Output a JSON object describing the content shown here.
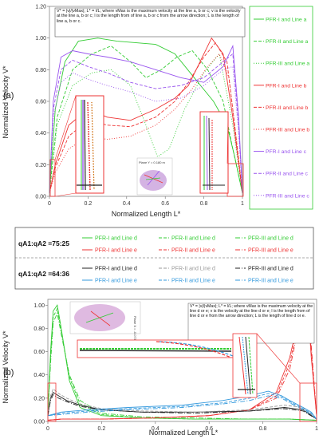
{
  "colors": {
    "green": "#33cc33",
    "red": "#ee3333",
    "purple": "#9955ee",
    "black": "#222222",
    "blue": "#3399dd",
    "grey": "#999999"
  },
  "chart_data": [
    {
      "type": "line",
      "panel_label": "(a)",
      "xlabel": "Normalized Length L*",
      "ylabel": "Normalized Velocity V*",
      "xlim": [
        0,
        1
      ],
      "ylim": [
        0,
        1.2
      ],
      "xticks": [
        "0",
        "0.2",
        "0.4",
        "0.6",
        "0.8",
        "1"
      ],
      "yticks": [
        "0.00",
        "0.20",
        "0.40",
        "0.60",
        "0.80",
        "1.00",
        "1.20"
      ],
      "grid": false,
      "legend_position": "right",
      "annotation": "V* = |v|/|vMax|;  L* = l/L;  where vMax is the maximum velocity at the line a, b or c; v is the velocity at the line a, b or c; l is the length from of line a, b or c from the arrow direction; L is the length of line a, b or c.",
      "inset_label": "Plane Y = 0.180 m",
      "series": [
        {
          "name": "PFR-I and Line a",
          "color": "#33cc33",
          "dash": "solid",
          "x": [
            0,
            0.03,
            0.08,
            0.15,
            0.25,
            0.35,
            0.45,
            0.55,
            0.65,
            0.75,
            0.85,
            0.92,
            0.96,
            1.0
          ],
          "y": [
            0.02,
            0.55,
            0.85,
            0.98,
            1.0,
            0.98,
            0.97,
            0.96,
            0.9,
            0.75,
            0.6,
            0.45,
            0.25,
            0.02
          ]
        },
        {
          "name": "PFR-II and Line a",
          "color": "#33cc33",
          "dash": "4,2",
          "x": [
            0,
            0.04,
            0.12,
            0.22,
            0.32,
            0.42,
            0.5,
            0.58,
            0.66,
            0.74,
            0.82,
            0.9,
            0.95,
            1.0
          ],
          "y": [
            0.02,
            0.5,
            0.8,
            0.9,
            0.95,
            0.85,
            0.75,
            0.8,
            0.88,
            0.92,
            0.8,
            0.6,
            0.3,
            0.02
          ]
        },
        {
          "name": "PFR-III and Line a",
          "color": "#33cc33",
          "dash": "1,2",
          "x": [
            0,
            0.04,
            0.12,
            0.22,
            0.32,
            0.42,
            0.5,
            0.56,
            0.62,
            0.7,
            0.8,
            0.88,
            0.95,
            1.0
          ],
          "y": [
            0.02,
            0.45,
            0.7,
            0.78,
            0.8,
            0.7,
            0.45,
            0.25,
            0.3,
            0.55,
            0.78,
            0.9,
            0.45,
            0.02
          ]
        },
        {
          "name": "PFR-I and Line b",
          "color": "#ee3333",
          "dash": "solid",
          "x": [
            0,
            0.03,
            0.1,
            0.2,
            0.3,
            0.42,
            0.55,
            0.65,
            0.72,
            0.78,
            0.84,
            0.9,
            0.95,
            1.0
          ],
          "y": [
            0.02,
            0.2,
            0.45,
            0.55,
            0.5,
            0.48,
            0.55,
            0.62,
            0.7,
            0.85,
            1.0,
            0.9,
            0.5,
            0.02
          ]
        },
        {
          "name": "PFR-II and Line b",
          "color": "#ee3333",
          "dash": "4,2",
          "x": [
            0,
            0.03,
            0.1,
            0.2,
            0.3,
            0.42,
            0.55,
            0.65,
            0.72,
            0.8,
            0.86,
            0.92,
            0.96,
            1.0
          ],
          "y": [
            0.02,
            0.18,
            0.38,
            0.48,
            0.45,
            0.44,
            0.5,
            0.6,
            0.72,
            0.88,
            0.97,
            0.85,
            0.45,
            0.02
          ]
        },
        {
          "name": "PFR-III and Line b",
          "color": "#ee3333",
          "dash": "1,2",
          "x": [
            0,
            0.03,
            0.1,
            0.2,
            0.3,
            0.42,
            0.55,
            0.65,
            0.74,
            0.82,
            0.88,
            0.93,
            0.97,
            1.0
          ],
          "y": [
            0.02,
            0.15,
            0.3,
            0.38,
            0.36,
            0.38,
            0.45,
            0.55,
            0.68,
            0.82,
            0.9,
            0.75,
            0.35,
            0.02
          ]
        },
        {
          "name": "PFR-I and Line c",
          "color": "#9955ee",
          "dash": "solid",
          "x": [
            0,
            0.02,
            0.06,
            0.12,
            0.2,
            0.3,
            0.42,
            0.55,
            0.68,
            0.8,
            0.9,
            0.95,
            0.98,
            1.0
          ],
          "y": [
            0.02,
            0.6,
            0.88,
            0.92,
            0.9,
            0.88,
            0.85,
            0.8,
            0.75,
            0.72,
            0.82,
            0.95,
            0.5,
            0.02
          ]
        },
        {
          "name": "PFR-II and Line c",
          "color": "#9955ee",
          "dash": "4,2",
          "x": [
            0,
            0.02,
            0.06,
            0.12,
            0.2,
            0.3,
            0.42,
            0.55,
            0.68,
            0.8,
            0.9,
            0.95,
            0.98,
            1.0
          ],
          "y": [
            0.02,
            0.55,
            0.8,
            0.86,
            0.82,
            0.78,
            0.72,
            0.68,
            0.7,
            0.75,
            0.85,
            0.9,
            0.45,
            0.02
          ]
        },
        {
          "name": "PFR-III and Line c",
          "color": "#9955ee",
          "dash": "1,2",
          "x": [
            0,
            0.02,
            0.06,
            0.12,
            0.2,
            0.3,
            0.42,
            0.55,
            0.68,
            0.8,
            0.9,
            0.95,
            0.98,
            1.0
          ],
          "y": [
            0.02,
            0.5,
            0.72,
            0.78,
            0.74,
            0.7,
            0.66,
            0.6,
            0.62,
            0.7,
            0.8,
            0.82,
            0.4,
            0.02
          ]
        }
      ]
    },
    {
      "type": "line",
      "panel_label": "(b)",
      "xlabel": "Normalized Length L*",
      "ylabel": "Normalized Velocity V*",
      "xlim": [
        0,
        1
      ],
      "ylim": [
        0,
        1.05
      ],
      "xticks": [
        "0",
        "0.2",
        "0.4",
        "0.6",
        "0.8",
        "1"
      ],
      "yticks": [
        "0.00",
        "0.20",
        "0.40",
        "0.60",
        "0.80",
        "1.00"
      ],
      "grid": false,
      "legend_position": "top",
      "annotation": "V* = |v|/|vMax|; L* = l/L; where vMax is the maximum velocity at the line d or e; v is the velocity at the line d or e; l is the length from of line d or e from the arrow direction; L is the length of line d or e.",
      "inset_label": "Plane X = -0.0733 m",
      "legend_groups": [
        {
          "label": "qA1:qA2 =75:25",
          "lines": [
            "d",
            "e"
          ]
        },
        {
          "label": "qA1:qA2 =64:36",
          "lines": [
            "d",
            "e"
          ]
        }
      ],
      "series": [
        {
          "name": "PFR-I and Line d",
          "group": "qA1:qA2 =75:25",
          "color": "#33cc33",
          "dash": "solid",
          "x": [
            0,
            0.01,
            0.02,
            0.035,
            0.05,
            0.08,
            0.12,
            0.2,
            0.35,
            0.55,
            0.75,
            0.9,
            1.0
          ],
          "y": [
            0.05,
            0.6,
            0.95,
            1.0,
            0.8,
            0.35,
            0.12,
            0.05,
            0.03,
            0.02,
            0.02,
            0.02,
            0.01
          ]
        },
        {
          "name": "PFR-II and Line d",
          "group": "qA1:qA2 =75:25",
          "color": "#33cc33",
          "dash": "4,2",
          "x": [
            0,
            0.01,
            0.02,
            0.035,
            0.05,
            0.08,
            0.12,
            0.2,
            0.35,
            0.55,
            0.75,
            0.9,
            1.0
          ],
          "y": [
            0.05,
            0.55,
            0.9,
            0.97,
            0.78,
            0.38,
            0.15,
            0.06,
            0.03,
            0.02,
            0.02,
            0.02,
            0.01
          ]
        },
        {
          "name": "PFR-III and Line d",
          "group": "qA1:qA2 =75:25",
          "color": "#33cc33",
          "dash": "6,2,1,2",
          "x": [
            0,
            0.01,
            0.02,
            0.035,
            0.05,
            0.08,
            0.12,
            0.2,
            0.35,
            0.55,
            0.75,
            0.9,
            1.0
          ],
          "y": [
            0.05,
            0.5,
            0.85,
            0.93,
            0.75,
            0.4,
            0.18,
            0.07,
            0.04,
            0.03,
            0.02,
            0.02,
            0.01
          ]
        },
        {
          "name": "PFR-I and Line e",
          "group": "qA1:qA2 =75:25",
          "color": "#ee3333",
          "dash": "solid",
          "x": [
            0,
            0.05,
            0.2,
            0.4,
            0.6,
            0.75,
            0.85,
            0.9,
            0.93,
            0.95,
            0.97,
            0.98,
            1.0
          ],
          "y": [
            0.01,
            0.02,
            0.02,
            0.03,
            0.05,
            0.1,
            0.25,
            0.55,
            0.85,
            0.98,
            0.9,
            0.55,
            0.05
          ]
        },
        {
          "name": "PFR-II and Line e",
          "group": "qA1:qA2 =75:25",
          "color": "#ee3333",
          "dash": "4,2",
          "x": [
            0,
            0.05,
            0.2,
            0.4,
            0.6,
            0.75,
            0.85,
            0.9,
            0.93,
            0.95,
            0.97,
            0.98,
            1.0
          ],
          "y": [
            0.01,
            0.02,
            0.02,
            0.03,
            0.05,
            0.1,
            0.22,
            0.5,
            0.82,
            0.96,
            0.92,
            0.6,
            0.05
          ]
        },
        {
          "name": "PFR-III and Line e",
          "group": "qA1:qA2 =75:25",
          "color": "#ee3333",
          "dash": "6,2,1,2",
          "x": [
            0,
            0.05,
            0.2,
            0.4,
            0.6,
            0.75,
            0.85,
            0.9,
            0.93,
            0.95,
            0.97,
            0.98,
            1.0
          ],
          "y": [
            0.01,
            0.02,
            0.02,
            0.03,
            0.05,
            0.1,
            0.2,
            0.45,
            0.78,
            0.93,
            0.94,
            0.65,
            0.05
          ]
        },
        {
          "name": "PFR-I and Line d",
          "group": "qA1:qA2 =64:36",
          "color": "#222222",
          "dash": "solid",
          "x": [
            0,
            0.01,
            0.02,
            0.04,
            0.07,
            0.12,
            0.2,
            0.35,
            0.55,
            0.75,
            0.88,
            0.95,
            1.0
          ],
          "y": [
            0.05,
            0.2,
            0.25,
            0.22,
            0.18,
            0.14,
            0.1,
            0.08,
            0.08,
            0.09,
            0.12,
            0.1,
            0.02
          ]
        },
        {
          "name": "PFR-II and Line d",
          "group": "qA1:qA2 =64:36",
          "color": "#999999",
          "dash": "4,2",
          "x": [
            0,
            0.01,
            0.02,
            0.04,
            0.07,
            0.12,
            0.2,
            0.35,
            0.55,
            0.75,
            0.88,
            0.95,
            1.0
          ],
          "y": [
            0.05,
            0.22,
            0.28,
            0.24,
            0.2,
            0.15,
            0.11,
            0.09,
            0.08,
            0.1,
            0.14,
            0.12,
            0.02
          ]
        },
        {
          "name": "PFR-III and Line d",
          "group": "qA1:qA2 =64:36",
          "color": "#222222",
          "dash": "6,2,1,2",
          "x": [
            0,
            0.01,
            0.02,
            0.04,
            0.07,
            0.12,
            0.2,
            0.35,
            0.55,
            0.75,
            0.88,
            0.95,
            1.0
          ],
          "y": [
            0.05,
            0.18,
            0.23,
            0.2,
            0.17,
            0.13,
            0.1,
            0.08,
            0.07,
            0.09,
            0.11,
            0.09,
            0.02
          ]
        },
        {
          "name": "PFR-I and Line e",
          "group": "qA1:qA2 =64:36",
          "color": "#3399dd",
          "dash": "solid",
          "x": [
            0,
            0.05,
            0.15,
            0.3,
            0.5,
            0.65,
            0.75,
            0.82,
            0.87,
            0.9,
            0.95,
            0.98,
            1.0
          ],
          "y": [
            0.05,
            0.08,
            0.1,
            0.12,
            0.14,
            0.18,
            0.22,
            0.26,
            0.22,
            0.18,
            0.12,
            0.08,
            0.02
          ]
        },
        {
          "name": "PFR-II and Line e",
          "group": "qA1:qA2 =64:36",
          "color": "#3399dd",
          "dash": "4,2",
          "x": [
            0,
            0.05,
            0.15,
            0.3,
            0.5,
            0.65,
            0.75,
            0.82,
            0.87,
            0.9,
            0.95,
            0.98,
            1.0
          ],
          "y": [
            0.05,
            0.07,
            0.09,
            0.11,
            0.13,
            0.16,
            0.2,
            0.24,
            0.21,
            0.17,
            0.11,
            0.07,
            0.02
          ]
        },
        {
          "name": "PFR-III and Line e",
          "group": "qA1:qA2 =64:36",
          "color": "#3399dd",
          "dash": "6,2,1,2",
          "x": [
            0,
            0.05,
            0.15,
            0.3,
            0.5,
            0.65,
            0.75,
            0.82,
            0.87,
            0.9,
            0.95,
            0.98,
            1.0
          ],
          "y": [
            0.05,
            0.06,
            0.08,
            0.1,
            0.12,
            0.15,
            0.18,
            0.22,
            0.2,
            0.16,
            0.1,
            0.06,
            0.02
          ]
        }
      ]
    }
  ]
}
